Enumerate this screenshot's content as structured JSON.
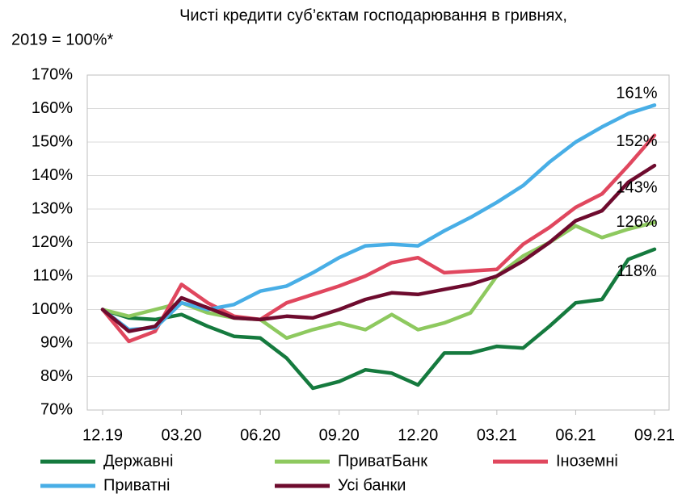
{
  "chart_data": {
    "type": "line",
    "title": "Чисті кредити суб’єктам господарювання в гривнях,",
    "subtitle": "2019 = 100%*",
    "categories": [
      "12.19",
      null,
      null,
      "03.20",
      null,
      null,
      "06.20",
      null,
      null,
      "09.20",
      null,
      null,
      "12.20",
      null,
      null,
      "03.21",
      null,
      null,
      "06.21",
      null,
      null,
      "09.21"
    ],
    "ylim": [
      70,
      170
    ],
    "yticks": [
      {
        "value": 70,
        "label": "70%"
      },
      {
        "value": 80,
        "label": "80%"
      },
      {
        "value": 90,
        "label": "90%"
      },
      {
        "value": 100,
        "label": "100%"
      },
      {
        "value": 110,
        "label": "110%"
      },
      {
        "value": 120,
        "label": "120%"
      },
      {
        "value": 130,
        "label": "130%"
      },
      {
        "value": 140,
        "label": "140%"
      },
      {
        "value": 150,
        "label": "150%"
      },
      {
        "value": 160,
        "label": "160%"
      },
      {
        "value": 170,
        "label": "170%"
      }
    ],
    "grid": true,
    "legend": "bottom",
    "series": [
      {
        "name": "Державні",
        "color": "#157a3e",
        "values": [
          100,
          97.5,
          97,
          98.5,
          95,
          92,
          91.5,
          85.5,
          76.5,
          78.5,
          82,
          81,
          77.5,
          87,
          87,
          89,
          88.5,
          95,
          102,
          103,
          115,
          118
        ],
        "value_labels": [
          null,
          null,
          null,
          null,
          null,
          null,
          null,
          null,
          null,
          null,
          null,
          null,
          null,
          null,
          null,
          null,
          null,
          null,
          null,
          null,
          null,
          "118%"
        ]
      },
      {
        "name": "ПриватБанк",
        "color": "#8ec95f",
        "values": [
          100,
          98,
          100,
          102,
          99,
          97.5,
          97,
          91.5,
          94,
          96,
          94,
          98.5,
          94,
          96,
          99,
          110,
          116,
          120,
          125,
          121.5,
          124,
          126
        ],
        "value_labels": [
          null,
          null,
          null,
          null,
          null,
          null,
          null,
          null,
          null,
          null,
          null,
          null,
          null,
          null,
          null,
          null,
          null,
          null,
          null,
          null,
          null,
          "126%"
        ]
      },
      {
        "name": "Іноземні",
        "color": "#e0475e",
        "values": [
          100,
          90.5,
          93.5,
          107.5,
          102,
          98,
          97,
          102,
          104.5,
          107,
          110,
          114,
          115.5,
          111,
          111.5,
          112,
          119.5,
          124.5,
          130.5,
          134.5,
          143,
          152
        ],
        "value_labels": [
          null,
          null,
          null,
          null,
          null,
          null,
          null,
          null,
          null,
          null,
          null,
          null,
          null,
          null,
          null,
          null,
          null,
          null,
          null,
          null,
          null,
          "152%"
        ]
      },
      {
        "name": "Приватні",
        "color": "#48aee6",
        "values": [
          100,
          94,
          94.5,
          102,
          100,
          101.5,
          105.5,
          107,
          111,
          115.5,
          119,
          119.5,
          119,
          123.5,
          127.5,
          132,
          137,
          144,
          150,
          154.5,
          158.5,
          161
        ],
        "value_labels": [
          null,
          null,
          null,
          null,
          null,
          null,
          null,
          null,
          null,
          null,
          null,
          null,
          null,
          null,
          null,
          null,
          null,
          null,
          null,
          null,
          null,
          "161%"
        ]
      },
      {
        "name": "Усі банки",
        "color": "#6e0b2e",
        "values": [
          100,
          93.5,
          95,
          103.5,
          100.5,
          97.5,
          97,
          98,
          97.5,
          100,
          103,
          105,
          104.5,
          106,
          107.5,
          110,
          114.5,
          120,
          126.5,
          129.5,
          138,
          143
        ],
        "value_labels": [
          null,
          null,
          null,
          null,
          null,
          null,
          null,
          null,
          null,
          null,
          null,
          null,
          null,
          null,
          null,
          null,
          null,
          null,
          null,
          null,
          null,
          "143%"
        ]
      }
    ]
  }
}
